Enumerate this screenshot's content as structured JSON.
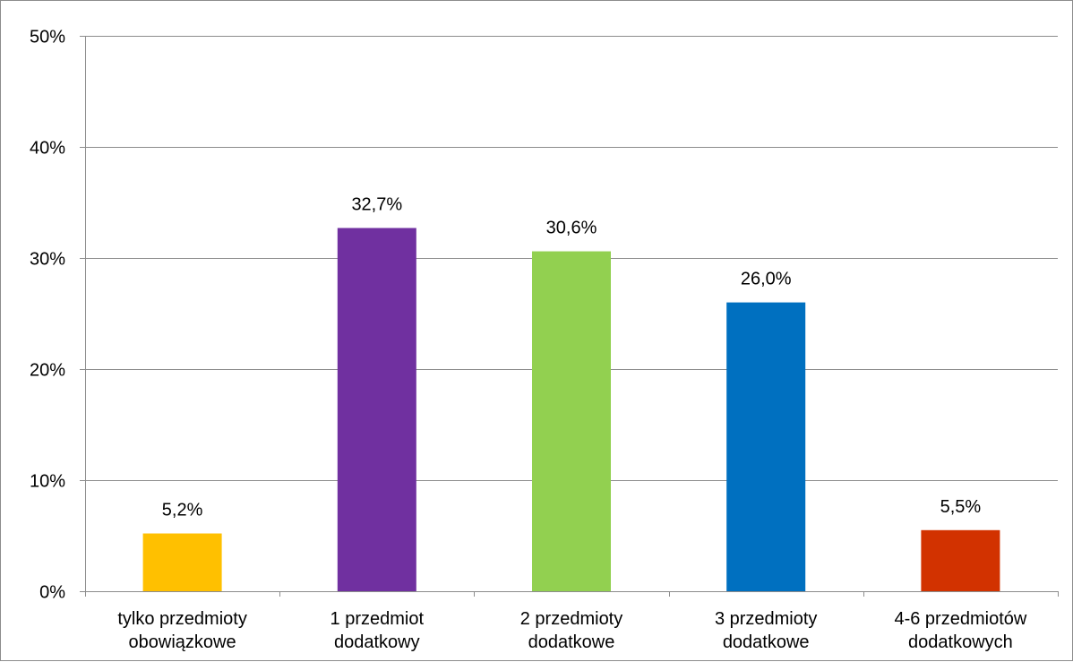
{
  "chart_data": {
    "type": "bar",
    "categories": [
      [
        "tylko przedmioty",
        "obowiązkowe"
      ],
      [
        "1 przedmiot",
        "dodatkowy"
      ],
      [
        "2 przedmioty",
        "dodatkowe"
      ],
      [
        "3 przedmioty",
        "dodatkowe"
      ],
      [
        "4-6 przedmiotów",
        "dodatkowych"
      ]
    ],
    "values": [
      5.2,
      32.7,
      30.6,
      26.0,
      5.5
    ],
    "data_labels": [
      "5,2%",
      "32,7%",
      "30,6%",
      "26,0%",
      "5,5%"
    ],
    "colors": [
      "#FFC000",
      "#7030A0",
      "#92D050",
      "#0070C0",
      "#D23200"
    ],
    "ylim": [
      0,
      50
    ],
    "yticks": [
      0,
      10,
      20,
      30,
      40,
      50
    ],
    "ytick_labels": [
      "0%",
      "10%",
      "20%",
      "30%",
      "40%",
      "50%"
    ],
    "grid": true,
    "gridline_color": "#8c8c8c",
    "legend": "none"
  }
}
